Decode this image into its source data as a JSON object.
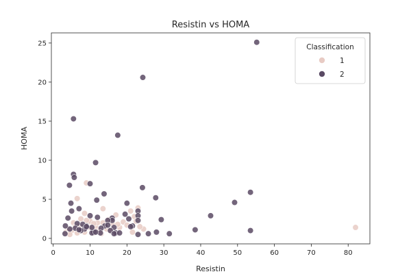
{
  "chart_data": {
    "type": "scatter",
    "title": "Resistin vs HOMA",
    "xlabel": "Resistin",
    "ylabel": "HOMA",
    "xlim": [
      -0.5,
      85.9
    ],
    "ylim": [
      -0.7,
      26.3
    ],
    "x_ticks": [
      0,
      10,
      20,
      30,
      40,
      50,
      60,
      70,
      80
    ],
    "y_ticks": [
      0,
      5,
      10,
      15,
      20,
      25
    ],
    "grid": false,
    "legend": {
      "title": "Classification",
      "placement": "top-right"
    },
    "series": [
      {
        "name": "1",
        "color": "#e8cbc4",
        "x": [
          3.5,
          4.2,
          5.0,
          5.5,
          6.0,
          6.5,
          7.0,
          7.5,
          8.0,
          8.5,
          9.0,
          9.5,
          10.0,
          10.5,
          11.0,
          11.5,
          12.0,
          12.5,
          13.0,
          13.5,
          14.0,
          14.5,
          15.0,
          16.0,
          17.0,
          18.0,
          19.0,
          20.0,
          21.0,
          22.0,
          22.5,
          23.0,
          24.5,
          6.5,
          8.0,
          8.5,
          10.0,
          13.5,
          82.0,
          4.5,
          7.0,
          9.0,
          11.0,
          12.5,
          15.5,
          17.5,
          21.5,
          23.5
        ],
        "y": [
          0.8,
          1.2,
          1.0,
          2.0,
          1.5,
          5.1,
          0.9,
          2.5,
          1.3,
          3.2,
          7.1,
          1.8,
          2.2,
          1.1,
          0.7,
          1.5,
          2.0,
          1.0,
          0.6,
          3.8,
          1.6,
          1.2,
          2.4,
          1.9,
          3.0,
          1.4,
          2.1,
          1.7,
          3.5,
          2.8,
          2.2,
          3.9,
          1.2,
          0.7,
          1.1,
          0.8,
          1.4,
          2.0,
          1.4,
          0.5,
          1.6,
          2.3,
          1.9,
          0.9,
          1.0,
          1.8,
          0.8,
          1.5
        ]
      },
      {
        "name": "2",
        "color": "#5a4a64",
        "x": [
          55.2,
          24.3,
          5.5,
          17.5,
          11.5,
          5.5,
          5.7,
          4.4,
          10.0,
          24.2,
          13.8,
          27.8,
          11.8,
          4.8,
          20.0,
          53.5,
          49.2,
          42.7,
          29.3,
          23.0,
          23.0,
          23.0,
          21.5,
          19.5,
          16.0,
          16.0,
          14.8,
          14.0,
          13.0,
          12.0,
          11.0,
          10.5,
          10.0,
          9.0,
          8.5,
          8.0,
          7.5,
          7.0,
          6.5,
          6.0,
          5.0,
          4.5,
          4.0,
          3.3,
          3.2,
          16.5,
          15.5,
          17.0,
          18.0,
          21.0,
          23.0,
          25.8,
          28.0,
          31.5,
          38.5,
          53.5,
          12.8,
          14.8,
          10.5,
          11.5,
          16.5,
          20.5,
          9.0,
          7.0
        ],
        "y": [
          25.1,
          20.6,
          15.3,
          13.2,
          9.7,
          8.2,
          7.8,
          6.8,
          7.0,
          6.5,
          5.7,
          5.2,
          4.9,
          4.5,
          4.5,
          5.9,
          4.6,
          2.9,
          2.4,
          3.5,
          2.9,
          2.3,
          1.6,
          3.1,
          2.6,
          2.3,
          2.3,
          1.6,
          1.3,
          2.7,
          0.8,
          0.7,
          2.9,
          1.6,
          1.2,
          1.8,
          1.0,
          3.8,
          1.9,
          1.3,
          3.5,
          1.2,
          2.6,
          1.6,
          0.6,
          1.4,
          1.0,
          0.7,
          0.7,
          1.5,
          0.5,
          0.6,
          0.8,
          0.6,
          1.1,
          1.0,
          0.7,
          1.7,
          1.4,
          0.8,
          0.6,
          2.5,
          1.5,
          1.1
        ]
      }
    ]
  }
}
